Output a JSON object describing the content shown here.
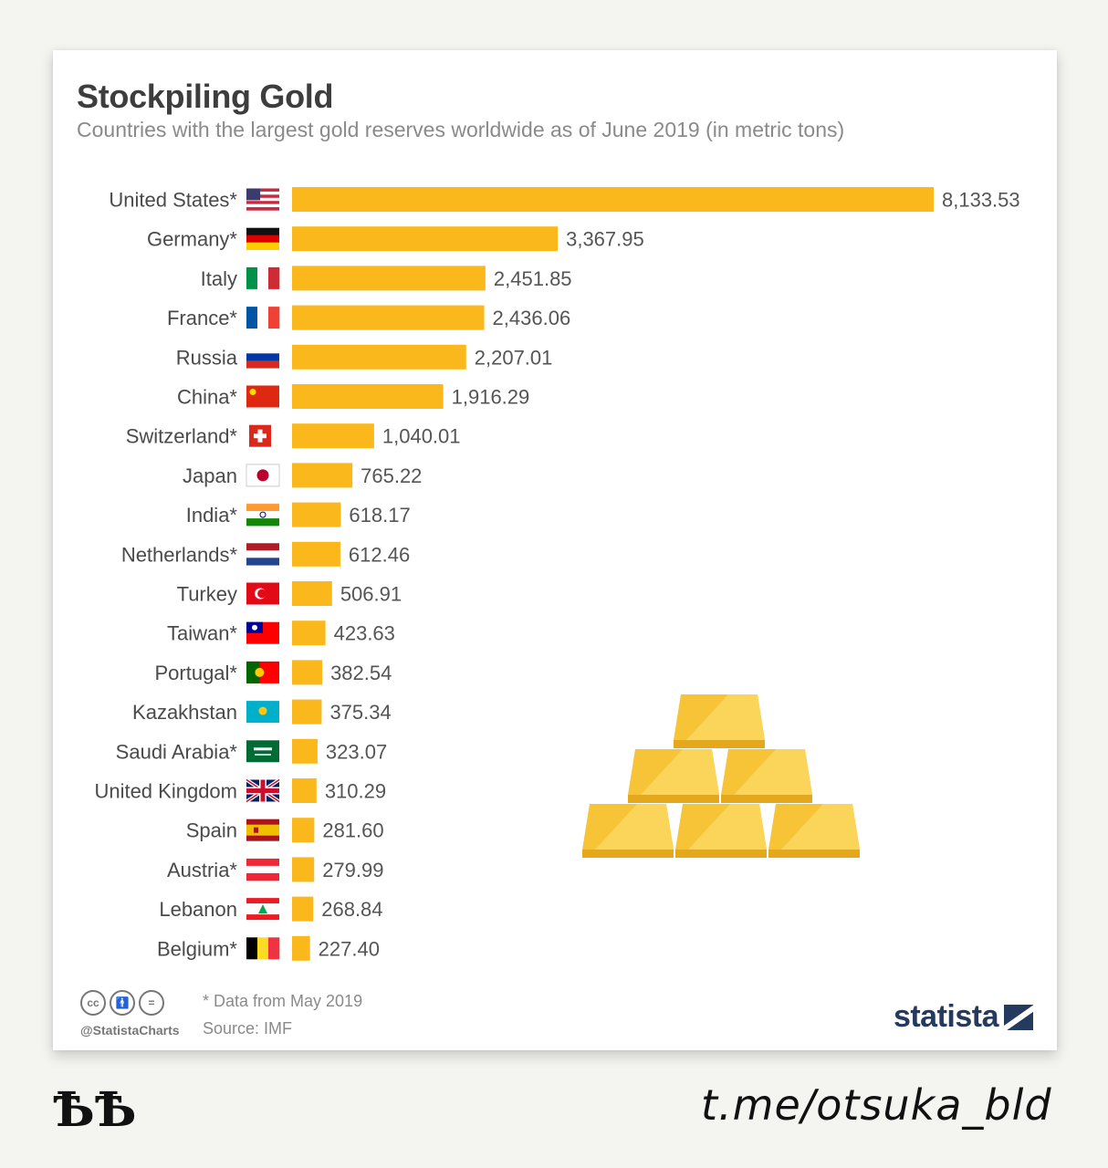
{
  "chart_data": {
    "type": "bar",
    "orientation": "horizontal",
    "title": "Stockpiling Gold",
    "subtitle": "Countries with the largest gold reserves worldwide as of June 2019 (in metric tons)",
    "categories": [
      "United States*",
      "Germany*",
      "Italy",
      "France*",
      "Russia",
      "China*",
      "Switzerland*",
      "Japan",
      "India*",
      "Netherlands*",
      "Turkey",
      "Taiwan*",
      "Portugal*",
      "Kazakhstan",
      "Saudi Arabia*",
      "United Kingdom",
      "Spain",
      "Austria*",
      "Lebanon",
      "Belgium*"
    ],
    "values": [
      8133.53,
      3367.95,
      2451.85,
      2436.06,
      2207.01,
      1916.29,
      1040.01,
      765.22,
      618.17,
      612.46,
      506.91,
      423.63,
      382.54,
      375.34,
      323.07,
      310.29,
      281.6,
      279.99,
      268.84,
      227.4
    ],
    "value_labels": [
      "8,133.53",
      "3,367.95",
      "2,451.85",
      "2,436.06",
      "2,207.01",
      "1,916.29",
      "1,040.01",
      "765.22",
      "618.17",
      "612.46",
      "506.91",
      "423.63",
      "382.54",
      "375.34",
      "323.07",
      "310.29",
      "281.60",
      "279.99",
      "268.84",
      "227.40"
    ],
    "flags": [
      "us",
      "de",
      "it",
      "fr",
      "ru",
      "cn",
      "ch",
      "jp",
      "in",
      "nl",
      "tr",
      "tw",
      "pt",
      "kz",
      "sa",
      "gb",
      "es",
      "at",
      "lb",
      "be"
    ],
    "bar_color": "#fbb81c",
    "xlim": [
      0,
      8133.53
    ],
    "grid": false,
    "legend": "none"
  },
  "footer": {
    "note": "* Data from May 2019",
    "source": "Source: IMF",
    "handle": "@StatistaCharts",
    "brand": "statista",
    "cc_icons": [
      "cc",
      "by",
      "nd"
    ]
  },
  "watermark": {
    "left": "ѢѢ",
    "right": "t.me/otsuka_bld"
  }
}
